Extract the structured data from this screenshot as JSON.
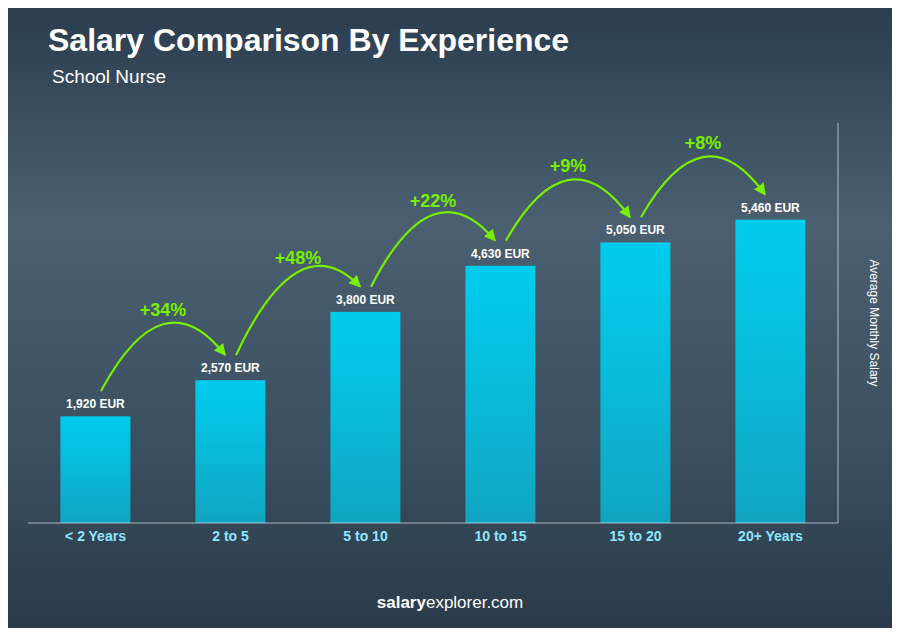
{
  "chart_data": {
    "type": "bar",
    "title": "Salary Comparison By Experience",
    "subtitle": "School Nurse",
    "ylabel": "Average Monthly Salary",
    "categories": [
      "< 2 Years",
      "2 to 5",
      "5 to 10",
      "10 to 15",
      "15 to 20",
      "20+ Years"
    ],
    "values": [
      1920,
      2570,
      3800,
      4630,
      5050,
      5460
    ],
    "value_labels": [
      "1,920 EUR",
      "2,570 EUR",
      "3,800 EUR",
      "4,630 EUR",
      "5,050 EUR",
      "5,460 EUR"
    ],
    "data_labels": true,
    "color": "#00ccee",
    "ylim": [
      0,
      7200
    ],
    "tick_labels": "x",
    "grid": false,
    "annotations": [
      {
        "text": "+34%",
        "from": "< 2 Years",
        "to": "2 to 5",
        "color": "#77ee00"
      },
      {
        "text": "+48%",
        "from": "2 to 5",
        "to": "5 to 10",
        "color": "#77ee00"
      },
      {
        "text": "+22%",
        "from": "5 to 10",
        "to": "10 to 15",
        "color": "#77ee00"
      },
      {
        "text": "+9%",
        "from": "10 to 15",
        "to": "15 to 20",
        "color": "#77ee00"
      },
      {
        "text": "+8%",
        "from": "15 to 20",
        "to": "20+ Years",
        "color": "#77ee00"
      },
      {
        "text": "salary"
      },
      {
        "text": "explorer.com"
      }
    ]
  }
}
